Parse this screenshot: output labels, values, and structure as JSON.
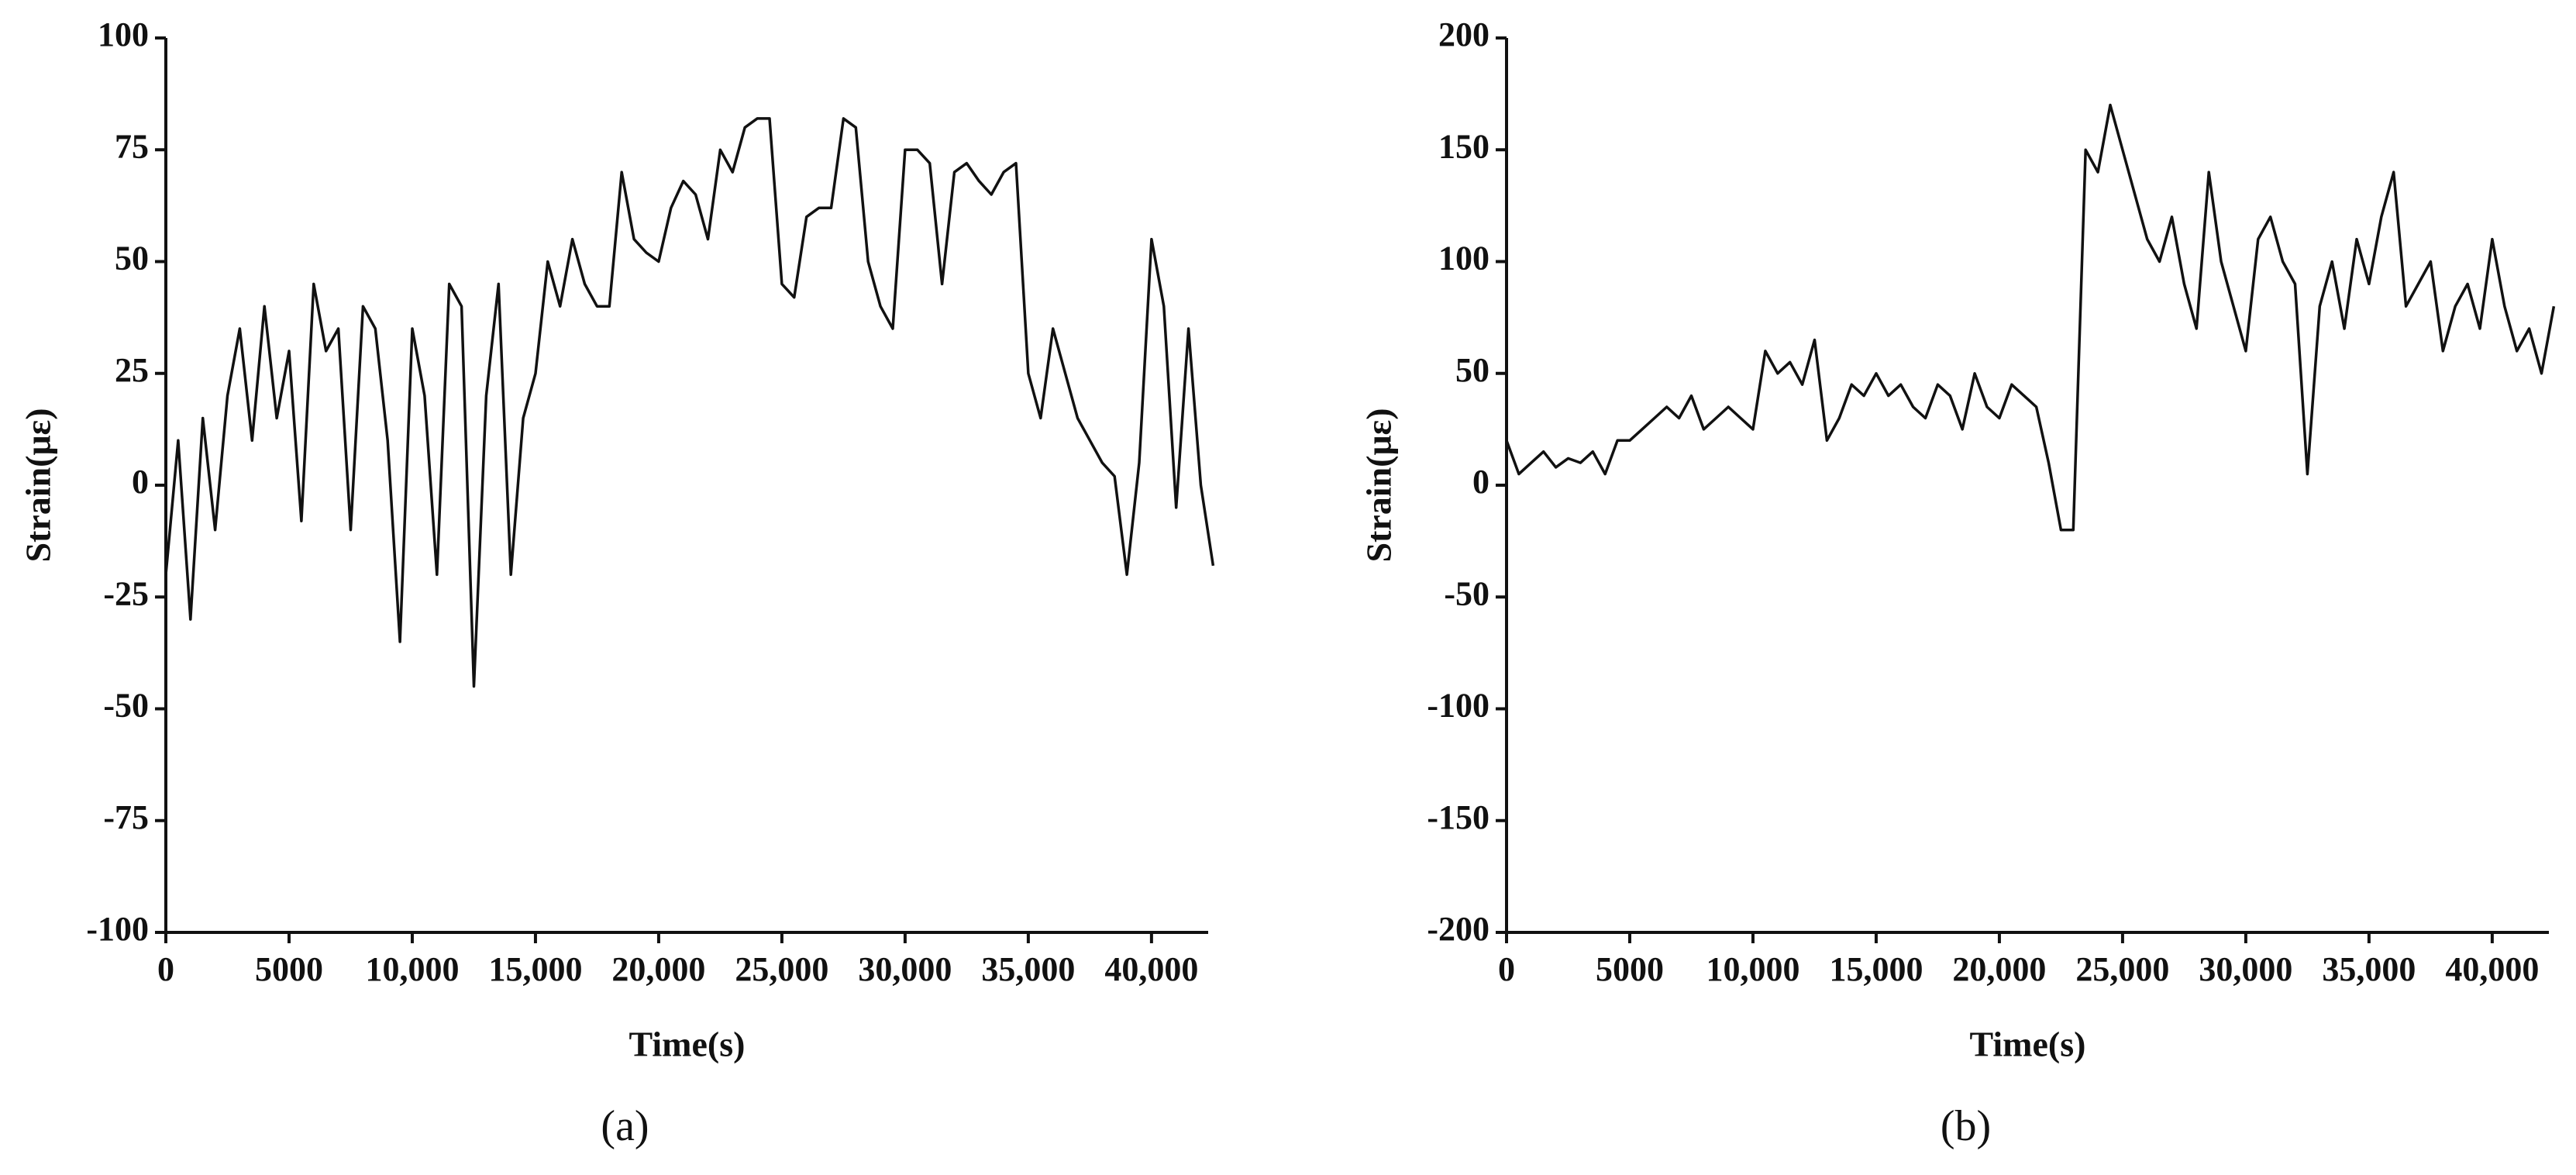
{
  "chart_data": [
    {
      "type": "line",
      "panel_label": "(a)",
      "xlabel": "Time(s)",
      "ylabel": "Strain(με)",
      "xlim": [
        0,
        42300
      ],
      "ylim": [
        -100,
        100
      ],
      "xticks": [
        0,
        5000,
        {
          "value": 10000,
          "label": "10,000"
        },
        {
          "value": 15000,
          "label": "15,000"
        },
        {
          "value": 20000,
          "label": "20,000"
        },
        {
          "value": 25000,
          "label": "25,000"
        },
        {
          "value": 30000,
          "label": "30,000"
        },
        {
          "value": 35000,
          "label": "35,000"
        },
        {
          "value": 40000,
          "label": "40,000"
        }
      ],
      "yticks": [
        -100,
        -75,
        -50,
        -25,
        0,
        25,
        50,
        75,
        100
      ],
      "series": [
        {
          "color": "#111111",
          "x": [
            0,
            500,
            1000,
            1500,
            2000,
            2500,
            3000,
            3500,
            4000,
            4500,
            5000,
            5500,
            6000,
            6500,
            7000,
            7500,
            8000,
            8500,
            9000,
            9500,
            10000,
            10500,
            11000,
            11500,
            12000,
            12500,
            13000,
            13500,
            14000,
            14500,
            15000,
            15500,
            16000,
            16500,
            17000,
            17500,
            18000,
            18500,
            19000,
            19500,
            20000,
            20500,
            21000,
            21500,
            22000,
            22500,
            23000,
            23500,
            24000,
            24500,
            25000,
            25500,
            26000,
            26500,
            27000,
            27500,
            28000,
            28500,
            29000,
            29500,
            30000,
            30500,
            31000,
            31500,
            32000,
            32500,
            33000,
            33500,
            34000,
            34500,
            35000,
            35500,
            36000,
            36500,
            37000,
            37500,
            38000,
            38500,
            39000,
            39500,
            40000,
            40500,
            41000,
            41500,
            42000,
            42500
          ],
          "values": [
            -20,
            10,
            -30,
            15,
            -10,
            20,
            35,
            10,
            40,
            15,
            30,
            -8,
            45,
            30,
            35,
            -10,
            40,
            35,
            10,
            -35,
            35,
            20,
            -20,
            45,
            40,
            -45,
            20,
            45,
            -20,
            15,
            25,
            50,
            40,
            55,
            45,
            40,
            40,
            70,
            55,
            52,
            50,
            62,
            68,
            65,
            55,
            75,
            70,
            80,
            82,
            82,
            45,
            42,
            60,
            62,
            62,
            82,
            80,
            50,
            40,
            35,
            75,
            75,
            72,
            45,
            70,
            72,
            68,
            65,
            70,
            72,
            25,
            15,
            35,
            25,
            15,
            10,
            5,
            2,
            -20,
            5,
            55,
            40,
            -5,
            35,
            0,
            -18
          ]
        }
      ]
    },
    {
      "type": "line",
      "panel_label": "(b)",
      "xlabel": "Time(s)",
      "ylabel": "Strain(με)",
      "xlim": [
        0,
        42300
      ],
      "ylim": [
        -200,
        200
      ],
      "xticks": [
        0,
        5000,
        {
          "value": 10000,
          "label": "10,000"
        },
        {
          "value": 15000,
          "label": "15,000"
        },
        {
          "value": 20000,
          "label": "20,000"
        },
        {
          "value": 25000,
          "label": "25,000"
        },
        {
          "value": 30000,
          "label": "30,000"
        },
        {
          "value": 35000,
          "label": "35,000"
        },
        {
          "value": 40000,
          "label": "40,000"
        }
      ],
      "yticks": [
        -200,
        -150,
        -100,
        -50,
        0,
        50,
        100,
        150,
        200
      ],
      "series": [
        {
          "color": "#111111",
          "x": [
            0,
            500,
            1000,
            1500,
            2000,
            2500,
            3000,
            3500,
            4000,
            4500,
            5000,
            5500,
            6000,
            6500,
            7000,
            7500,
            8000,
            8500,
            9000,
            9500,
            10000,
            10500,
            11000,
            11500,
            12000,
            12500,
            13000,
            13500,
            14000,
            14500,
            15000,
            15500,
            16000,
            16500,
            17000,
            17500,
            18000,
            18500,
            19000,
            19500,
            20000,
            20500,
            21000,
            21500,
            22000,
            22500,
            23000,
            23500,
            24000,
            24500,
            25000,
            25500,
            26000,
            26500,
            27000,
            27500,
            28000,
            28500,
            29000,
            29500,
            30000,
            30500,
            31000,
            31500,
            32000,
            32500,
            33000,
            33500,
            34000,
            34500,
            35000,
            35500,
            36000,
            36500,
            37000,
            37500,
            38000,
            38500,
            39000,
            39500,
            40000,
            40500,
            41000,
            41500,
            42000,
            42500
          ],
          "values": [
            20,
            5,
            10,
            15,
            8,
            12,
            10,
            15,
            5,
            20,
            20,
            25,
            30,
            35,
            30,
            40,
            25,
            30,
            35,
            30,
            25,
            60,
            50,
            55,
            45,
            65,
            20,
            30,
            45,
            40,
            50,
            40,
            45,
            35,
            30,
            45,
            40,
            25,
            50,
            35,
            30,
            45,
            40,
            35,
            10,
            -20,
            -20,
            150,
            140,
            170,
            150,
            130,
            110,
            100,
            120,
            90,
            70,
            140,
            100,
            80,
            60,
            110,
            120,
            100,
            90,
            5,
            80,
            100,
            70,
            110,
            90,
            120,
            140,
            80,
            90,
            100,
            60,
            80,
            90,
            70,
            110,
            80,
            60,
            70,
            50,
            80
          ]
        }
      ]
    }
  ]
}
